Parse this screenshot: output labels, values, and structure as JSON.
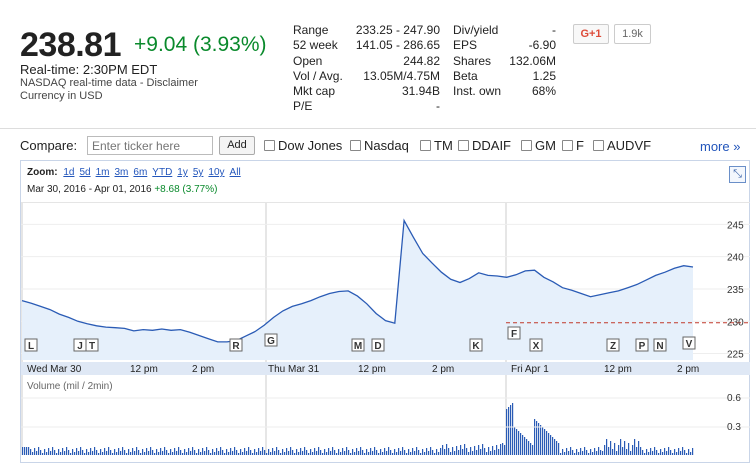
{
  "quote": {
    "price": "238.81",
    "change": "+9.04 (3.93%)",
    "realtime": "Real-time:   2:30PM EDT",
    "source": "NASDAQ real-time data - Disclaimer",
    "currency": "Currency in USD"
  },
  "stats_left": [
    {
      "label": "Range",
      "value": "233.25 - 247.90"
    },
    {
      "label": "52 week",
      "value": "141.05 - 286.65"
    },
    {
      "label": "Open",
      "value": "244.82"
    },
    {
      "label": "Vol / Avg.",
      "value": "13.05M/4.75M"
    },
    {
      "label": "Mkt cap",
      "value": "31.94B"
    },
    {
      "label": "P/E",
      "value": "-"
    }
  ],
  "stats_right": [
    {
      "label": "Div/yield",
      "value": "-"
    },
    {
      "label": "EPS",
      "value": "-6.90"
    },
    {
      "label": "Shares",
      "value": "132.06M"
    },
    {
      "label": "Beta",
      "value": "1.25"
    },
    {
      "label": "Inst. own",
      "value": "68%"
    }
  ],
  "social": {
    "gplus_label": "G+1",
    "count": "1.9k"
  },
  "compare": {
    "label": "Compare:",
    "placeholder": "Enter ticker here",
    "add_label": "Add",
    "tickers": [
      "Dow Jones",
      "Nasdaq",
      "TM",
      "DDAIF",
      "GM",
      "F",
      "AUDVF"
    ],
    "more_label": "more »"
  },
  "zoom": {
    "label": "Zoom:",
    "options": [
      "1d",
      "5d",
      "1m",
      "3m",
      "6m",
      "YTD",
      "1y",
      "5y",
      "10y",
      "All"
    ]
  },
  "range": {
    "start": "Mar 30, 2016",
    "sep": "-",
    "end": "Apr 01, 2016",
    "change": "+8.68 (3.77%)"
  },
  "chart_data": {
    "type": "area",
    "title": "",
    "y_ticks": [
      "245",
      "240",
      "235",
      "230",
      "225"
    ],
    "ylim": [
      224,
      248
    ],
    "x_tick_labels": [
      "Wed Mar 30",
      "12 pm",
      "2 pm",
      "Thu Mar 31",
      "12 pm",
      "2 pm",
      "Fri Apr 1",
      "12 pm",
      "2 pm"
    ],
    "previous_close": 229.77,
    "x": [
      0,
      2,
      4,
      6,
      8,
      10,
      12,
      14,
      16,
      18,
      20,
      22,
      24,
      26,
      28,
      30,
      32,
      34,
      36,
      38,
      40,
      42,
      44,
      46,
      48,
      50,
      52,
      54,
      56,
      58,
      60,
      62,
      64,
      66,
      68,
      70,
      72,
      74,
      76,
      78,
      80,
      82,
      84,
      86,
      88,
      90,
      92,
      94,
      96,
      98,
      100,
      102,
      104,
      106,
      108,
      110,
      112,
      114,
      116,
      118,
      120,
      122,
      124,
      126,
      128,
      130,
      132,
      134,
      136,
      138,
      140,
      142,
      144
    ],
    "values": [
      233.2,
      232.8,
      232.3,
      231.8,
      231.1,
      230.6,
      230.0,
      229.6,
      229.3,
      229.1,
      229.0,
      228.9,
      228.5,
      228.7,
      228.6,
      228.8,
      228.6,
      228.7,
      228.3,
      227.8,
      227.3,
      226.8,
      226.8,
      227.0,
      227.7,
      228.4,
      229.4,
      230.6,
      231.6,
      232.3,
      232.7,
      233.2,
      233.8,
      234.3,
      234.6,
      234.7,
      233.9,
      232.7,
      231.2,
      230.1,
      229.7,
      245.6,
      243.0,
      240.5,
      239.0,
      237.6,
      236.5,
      236.0,
      236.6,
      237.5,
      237.1,
      237.0,
      236.8,
      237.2,
      237.8,
      237.9,
      236.8,
      236.1,
      235.2,
      234.8,
      234.3,
      233.8,
      234.1,
      234.4,
      234.7,
      235.2,
      235.7,
      236.4,
      237.1,
      237.6,
      238.2,
      238.6,
      238.4
    ],
    "markers": [
      "L",
      "J",
      "T",
      "R",
      "G",
      "M",
      "D",
      "K",
      "F",
      "X",
      "Z",
      "P",
      "N",
      "V"
    ],
    "volume_label": "Volume (mil / 2min)",
    "volume_ticks": [
      "0.6",
      "0.3"
    ]
  }
}
